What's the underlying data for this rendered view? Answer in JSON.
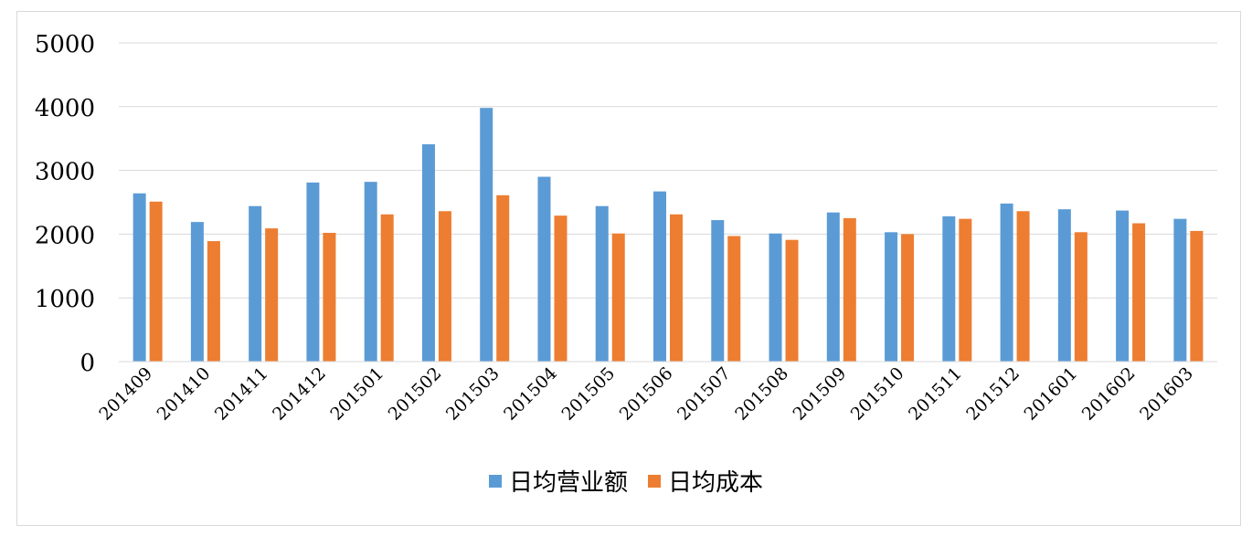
{
  "chart_data": {
    "type": "bar",
    "title": "",
    "xlabel": "",
    "ylabel": "",
    "ylim": [
      0,
      5000
    ],
    "yticks": [
      0,
      1000,
      2000,
      3000,
      4000,
      5000
    ],
    "grid": "horizontal",
    "legend_position": "bottom",
    "categories": [
      "201409",
      "201410",
      "201411",
      "201412",
      "201501",
      "201502",
      "201503",
      "201504",
      "201505",
      "201506",
      "201507",
      "201508",
      "201509",
      "201510",
      "201511",
      "201512",
      "201601",
      "201602",
      "201603"
    ],
    "series": [
      {
        "name": "日均营业额",
        "color": "#5B9BD5",
        "values": [
          2640,
          2190,
          2440,
          2810,
          2820,
          3410,
          3980,
          2900,
          2440,
          2670,
          2220,
          2010,
          2340,
          2030,
          2280,
          2480,
          2390,
          2370,
          2240
        ]
      },
      {
        "name": "日均成本",
        "color": "#ED7D31",
        "values": [
          2510,
          1890,
          2090,
          2020,
          2310,
          2360,
          2610,
          2290,
          2010,
          2310,
          1970,
          1910,
          2250,
          2000,
          2240,
          2360,
          2030,
          2170,
          2050
        ]
      }
    ]
  }
}
